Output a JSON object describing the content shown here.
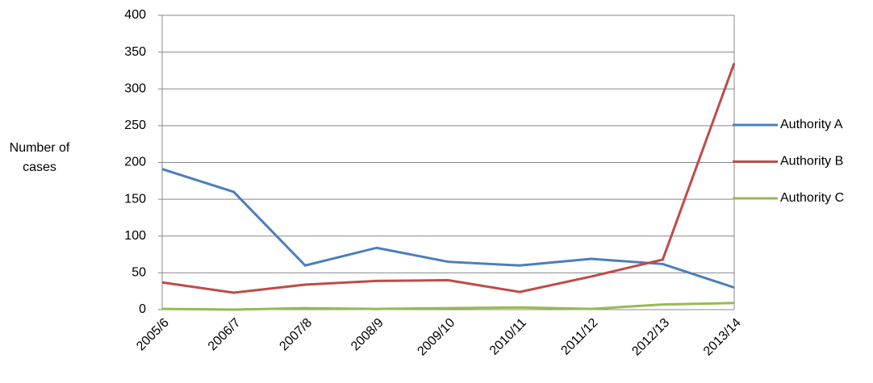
{
  "chart_data": {
    "type": "line",
    "y_label": "Number of cases",
    "categories": [
      "2005/6",
      "2006/7",
      "2007/8",
      "2008/9",
      "2009/10",
      "2010/11",
      "2011/12",
      "2012/13",
      "2013/14"
    ],
    "series": [
      {
        "name": "Authority A",
        "color": "#4a7ebb",
        "values": [
          191,
          160,
          60,
          84,
          65,
          60,
          69,
          62,
          30
        ]
      },
      {
        "name": "Authority B",
        "color": "#be4b48",
        "values": [
          37,
          23,
          34,
          39,
          40,
          24,
          45,
          68,
          335
        ]
      },
      {
        "name": "Authority C",
        "color": "#98b954",
        "values": [
          1,
          0,
          2,
          1,
          2,
          3,
          1,
          7,
          9
        ]
      }
    ],
    "ylim": [
      0,
      400
    ],
    "yticks": [
      0,
      50,
      100,
      150,
      200,
      250,
      300,
      350,
      400
    ],
    "grid": true,
    "legend": "right"
  }
}
